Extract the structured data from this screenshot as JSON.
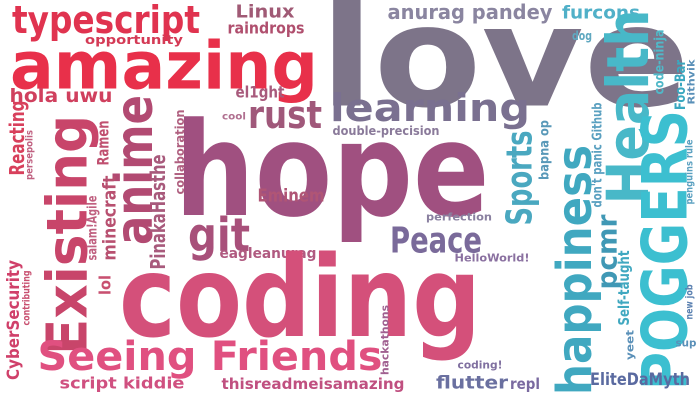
{
  "words": [
    "typescript",
    "opportunity",
    "amazing",
    "Linux",
    "raindrops",
    "love",
    "anurag pandey",
    "furcons",
    "dog",
    "don't panic Github",
    "code-ninja",
    "Foo-Bar",
    "Rithvik",
    "Health",
    "POGGERS",
    "hola uwu",
    "el1ght",
    "learning",
    "rust",
    "cool",
    "Reacting",
    "persepolis",
    "Existing",
    "Ramen",
    "anime",
    "collaboration",
    "double-precision",
    "hope",
    "Sports",
    "bapna op",
    "happiness",
    "salam!Agile",
    "minecraft",
    "PinakaHasthe",
    "git",
    "Eminem",
    "perfection",
    "Peace",
    "pcmr",
    "Self-taught",
    "penguins rule",
    "new job",
    "CyberSecurity",
    "contributing",
    "lol",
    "eagleanurag",
    "HelloWorld!",
    "coding",
    "hackathons",
    "Seeing Friends",
    "yeet",
    "sup",
    "coding!",
    "script kiddie",
    "thisreadmeisamazing",
    "flutter",
    "repl",
    "EliteDaMyth"
  ]
}
